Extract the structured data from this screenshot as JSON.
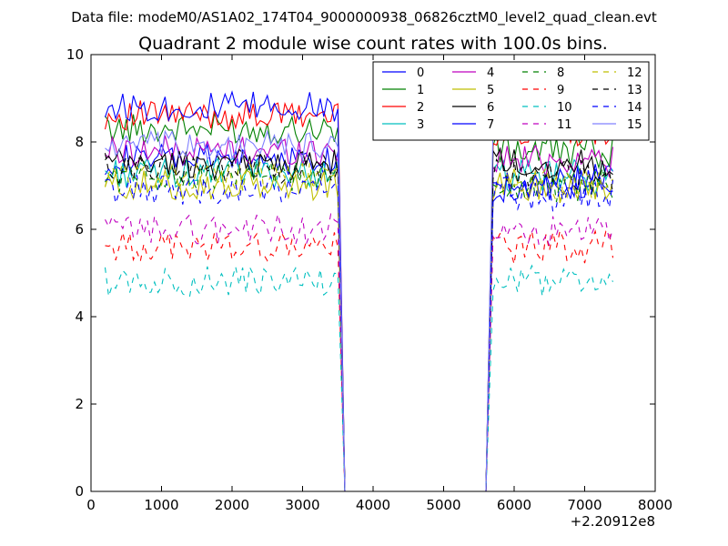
{
  "suptitle": "Data file: modeM0/AS1A02_174T04_9000000938_06826cztM0_level2_quad_clean.evt",
  "chart_data": {
    "type": "line",
    "title": "Quadrant 2 module wise count rates with 100.0s bins.",
    "xlabel": "",
    "ylabel": "",
    "x_offset_label": "+2.20912e8",
    "xlim": [
      0,
      8000
    ],
    "ylim": [
      0,
      10
    ],
    "x_ticks": [
      0,
      1000,
      2000,
      3000,
      4000,
      5000,
      6000,
      7000,
      8000
    ],
    "y_ticks": [
      0,
      2,
      4,
      6,
      8,
      10
    ],
    "grid": false,
    "legend": {
      "placement": "top-right",
      "columns": 4
    },
    "gap": {
      "start": 3600,
      "end": 5600,
      "value": 0
    },
    "segment1": {
      "start": 200,
      "end": 3500,
      "step": 50
    },
    "segment2": {
      "start": 5700,
      "end": 7400,
      "step": 50
    },
    "series": [
      {
        "name": "0",
        "color": "#0000ff",
        "dash": "solid",
        "level1": 7.6,
        "level2": 7.1
      },
      {
        "name": "1",
        "color": "#008000",
        "dash": "solid",
        "level1": 8.3,
        "level2": 7.8
      },
      {
        "name": "2",
        "color": "#ff0000",
        "dash": "solid",
        "level1": 8.6,
        "level2": 8.3
      },
      {
        "name": "3",
        "color": "#00bfbf",
        "dash": "solid",
        "level1": 7.3,
        "level2": 7.2
      },
      {
        "name": "4",
        "color": "#bf00bf",
        "dash": "solid",
        "level1": 7.8,
        "level2": 7.6
      },
      {
        "name": "5",
        "color": "#bfbf00",
        "dash": "solid",
        "level1": 7.0,
        "level2": 7.0
      },
      {
        "name": "6",
        "color": "#000000",
        "dash": "solid",
        "level1": 7.5,
        "level2": 7.5
      },
      {
        "name": "7",
        "color": "#0000ff",
        "dash": "solid",
        "level1": 8.8,
        "level2": 7.0
      },
      {
        "name": "8",
        "color": "#008000",
        "dash": "dashed",
        "level1": 7.2,
        "level2": 7.0
      },
      {
        "name": "9",
        "color": "#ff0000",
        "dash": "dashed",
        "level1": 5.6,
        "level2": 5.6
      },
      {
        "name": "10",
        "color": "#00bfbf",
        "dash": "dashed",
        "level1": 4.8,
        "level2": 4.8
      },
      {
        "name": "11",
        "color": "#bf00bf",
        "dash": "dashed",
        "level1": 6.0,
        "level2": 5.9
      },
      {
        "name": "12",
        "color": "#bfbf00",
        "dash": "dashed",
        "level1": 7.2,
        "level2": 7.0
      },
      {
        "name": "13",
        "color": "#000000",
        "dash": "dashed",
        "level1": 7.4,
        "level2": 7.2
      },
      {
        "name": "14",
        "color": "#0000ff",
        "dash": "dashed",
        "level1": 6.9,
        "level2": 6.8
      },
      {
        "name": "15",
        "color": "#8080ff",
        "dash": "solid",
        "level1": 7.9,
        "level2": 8.6
      }
    ]
  }
}
